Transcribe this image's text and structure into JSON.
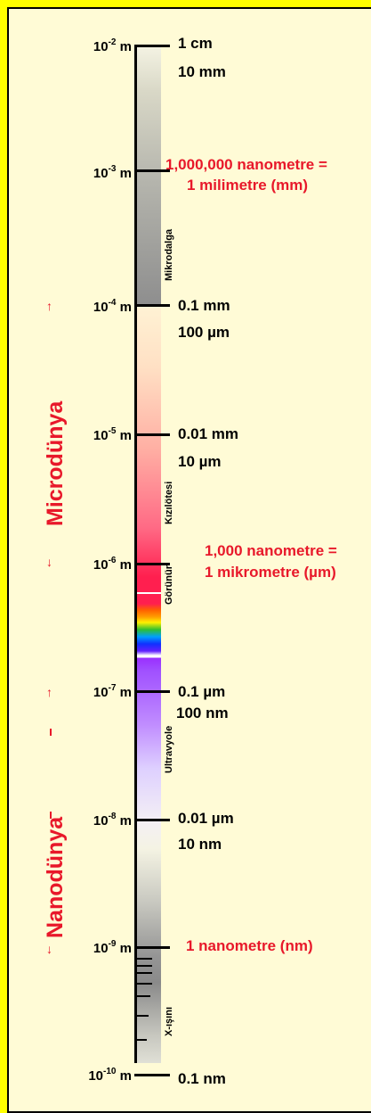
{
  "scale_powers": [
    {
      "base": "10",
      "exp": "-2",
      "unit": " m"
    },
    {
      "base": "10",
      "exp": "-3",
      "unit": " m"
    },
    {
      "base": "10",
      "exp": "-4",
      "unit": " m"
    },
    {
      "base": "10",
      "exp": "-5",
      "unit": " m"
    },
    {
      "base": "10",
      "exp": "-6",
      "unit": " m"
    },
    {
      "base": "10",
      "exp": "-7",
      "unit": " m"
    },
    {
      "base": "10",
      "exp": "-8",
      "unit": " m"
    },
    {
      "base": "10",
      "exp": "-9",
      "unit": " m"
    },
    {
      "base": "10",
      "exp": "-10",
      "unit": " m"
    }
  ],
  "labels": {
    "cm1": "1 cm",
    "mm10": "10 mm",
    "nano_mm_1": "1,000,000 nanometre =",
    "nano_mm_2": "1 milimetre (mm)",
    "mm01": "0.1 mm",
    "um100": "100 µm",
    "mm001": "0.01 mm",
    "um10": "10 µm",
    "nano_um_1": "1,000 nanometre =",
    "nano_um_2": "1 mikrometre (µm)",
    "um01": "0.1 µm",
    "nm100": "100 nm",
    "um001": "0.01 µm",
    "nm10": "10 nm",
    "nm1": "1 nanometre (nm)",
    "nm01": "0.1 nm"
  },
  "bands": {
    "microwave": "Mikrodalga",
    "infrared": "Kızılötesi",
    "visible": "Görünür",
    "ultraviolet": "Ultravyole",
    "xray": "X-ışını"
  },
  "worlds": {
    "micro": "Microdünya",
    "nano": "Nanodünya"
  },
  "colors": {
    "background": "#ffff00",
    "panel": "#fffbd6",
    "accent_red": "#e8182a"
  }
}
